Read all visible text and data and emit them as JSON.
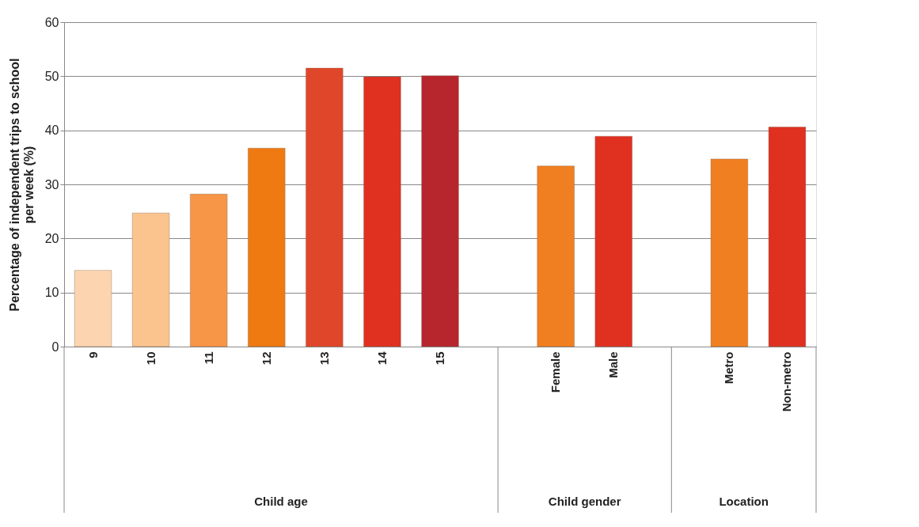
{
  "chart_data": {
    "type": "bar",
    "ylabel": "Percentage of independent trips to school per week (%)",
    "categories": [
      "9",
      "10",
      "11",
      "12",
      "13",
      "14",
      "15",
      null,
      "Female",
      "Male",
      null,
      "Metro",
      "Non-metro"
    ],
    "values": [
      14.1,
      24.7,
      28.2,
      36.7,
      51.5,
      49.9,
      50.1,
      null,
      33.4,
      38.9,
      null,
      34.7,
      40.6
    ],
    "colors": [
      "#fcd5b0",
      "#fbc48e",
      "#f79646",
      "#ee7a11",
      "#e0472a",
      "#e03020",
      "#b7262c",
      "#ffffff",
      "#f07f21",
      "#e03020",
      "#ffffff",
      "#f07f21",
      "#e03020"
    ],
    "ylim": [
      0,
      60
    ],
    "yticks": [
      0,
      10,
      20,
      30,
      40,
      50,
      60
    ],
    "grid": "y",
    "annotations": [
      "Child age",
      "Child gender",
      "Location"
    ]
  }
}
